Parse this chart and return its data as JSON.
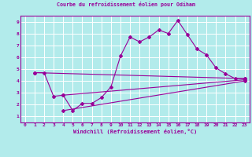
{
  "title": "Courbe du refroidissement éolien pour Odiham",
  "xlabel": "Windchill (Refroidissement éolien,°C)",
  "bg_color": "#b2ebeb",
  "line_color": "#990099",
  "grid_color": "#ffffff",
  "xlim": [
    -0.5,
    23.5
  ],
  "ylim": [
    0.5,
    9.5
  ],
  "xticks": [
    0,
    1,
    2,
    3,
    4,
    5,
    6,
    7,
    8,
    9,
    10,
    11,
    12,
    13,
    14,
    15,
    16,
    17,
    18,
    19,
    20,
    21,
    22,
    23
  ],
  "yticks": [
    1,
    2,
    3,
    4,
    5,
    6,
    7,
    8,
    9
  ],
  "series1_x": [
    1,
    2,
    3,
    4,
    5,
    6,
    7,
    8,
    9,
    10,
    11,
    12,
    13,
    14,
    15,
    16,
    17,
    18,
    19,
    20,
    21,
    22,
    23
  ],
  "series1_y": [
    4.7,
    4.7,
    2.7,
    2.8,
    1.5,
    2.1,
    2.1,
    2.6,
    3.5,
    6.1,
    7.7,
    7.3,
    7.7,
    8.3,
    8.0,
    9.1,
    7.9,
    6.7,
    6.2,
    5.1,
    4.6,
    4.2,
    4.2
  ],
  "series2_x": [
    1,
    23
  ],
  "series2_y": [
    4.7,
    4.2
  ],
  "series3_x": [
    4,
    23
  ],
  "series3_y": [
    2.8,
    4.1
  ],
  "series4_x": [
    4,
    23
  ],
  "series4_y": [
    1.5,
    4.0
  ]
}
